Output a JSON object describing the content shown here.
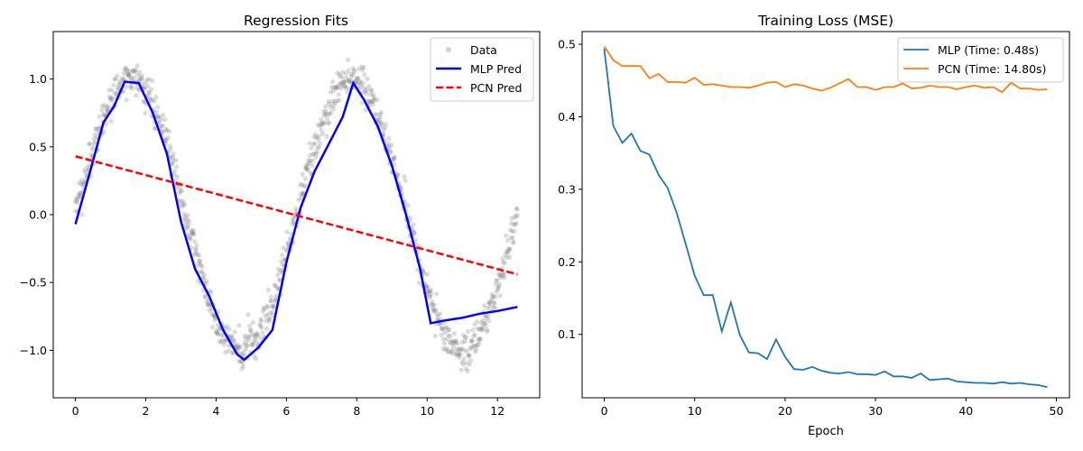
{
  "chart_data": [
    {
      "type": "scatter",
      "title": "Regression Fits",
      "xlabel": "",
      "ylabel": "",
      "xlim": [
        -0.63,
        13.2
      ],
      "ylim": [
        -1.35,
        1.35
      ],
      "xticks": [
        0,
        2,
        4,
        6,
        8,
        10,
        12
      ],
      "yticks": [
        -1.0,
        -0.5,
        0.0,
        0.5,
        1.0
      ],
      "ytick_labels": [
        "−1.0",
        "−0.5",
        "0.0",
        "0.5",
        "1.0"
      ],
      "legend_position": "upper right",
      "colors": {
        "data": "#808080",
        "mlp": "#0000ff",
        "pcn": "#ff0000"
      },
      "scatter": {
        "name": "Data",
        "function": "sin(x) with noise",
        "x_range": [
          0,
          12.57
        ],
        "noise_std": 0.07
      },
      "series": [
        {
          "name": "MLP Pred",
          "style": "solid",
          "x": [
            0,
            0.4,
            0.8,
            1.1,
            1.4,
            1.8,
            2.2,
            2.6,
            3.0,
            3.4,
            3.8,
            4.2,
            4.6,
            4.8,
            5.2,
            5.6,
            6.0,
            6.4,
            6.8,
            7.2,
            7.6,
            7.9,
            8.2,
            8.6,
            9.0,
            9.4,
            9.8,
            10.1,
            10.5,
            11.0,
            11.5,
            12.0,
            12.57
          ],
          "y": [
            -0.07,
            0.3,
            0.68,
            0.8,
            0.98,
            0.97,
            0.75,
            0.45,
            -0.05,
            -0.4,
            -0.6,
            -0.85,
            -1.03,
            -1.07,
            -0.98,
            -0.85,
            -0.35,
            0.05,
            0.32,
            0.52,
            0.72,
            0.97,
            0.85,
            0.65,
            0.36,
            0.0,
            -0.4,
            -0.8,
            -0.78,
            -0.76,
            -0.73,
            -0.71,
            -0.68
          ]
        },
        {
          "name": "PCN Pred",
          "style": "dashed",
          "x": [
            0,
            12.57
          ],
          "y": [
            0.43,
            -0.44
          ]
        }
      ]
    },
    {
      "type": "line",
      "title": "Training Loss (MSE)",
      "xlabel": "Epoch",
      "ylabel": "",
      "xlim": [
        -2.45,
        51.45
      ],
      "ylim": [
        0.0125,
        0.5175
      ],
      "xticks": [
        0,
        10,
        20,
        30,
        40,
        50
      ],
      "yticks": [
        0.1,
        0.2,
        0.3,
        0.4,
        0.5
      ],
      "legend_position": "upper right",
      "series": [
        {
          "name": "MLP (Time: 0.48s)",
          "color": "#1f77b4",
          "x": [
            0,
            1,
            2,
            3,
            4,
            5,
            6,
            7,
            8,
            9,
            10,
            11,
            12,
            13,
            14,
            15,
            16,
            17,
            18,
            19,
            20,
            21,
            22,
            23,
            24,
            25,
            26,
            27,
            28,
            29,
            30,
            31,
            32,
            33,
            34,
            35,
            36,
            37,
            38,
            39,
            40,
            41,
            42,
            43,
            44,
            45,
            46,
            47,
            48,
            49
          ],
          "y": [
            0.494,
            0.387,
            0.364,
            0.377,
            0.353,
            0.348,
            0.32,
            0.302,
            0.268,
            0.225,
            0.181,
            0.154,
            0.154,
            0.104,
            0.144,
            0.099,
            0.075,
            0.074,
            0.066,
            0.093,
            0.069,
            0.052,
            0.051,
            0.055,
            0.05,
            0.047,
            0.046,
            0.048,
            0.045,
            0.045,
            0.044,
            0.049,
            0.042,
            0.042,
            0.04,
            0.046,
            0.037,
            0.038,
            0.039,
            0.035,
            0.034,
            0.033,
            0.033,
            0.032,
            0.034,
            0.032,
            0.033,
            0.031,
            0.03,
            0.027
          ]
        },
        {
          "name": "PCN (Time: 14.80s)",
          "color": "#ff7f0e",
          "x": [
            0,
            1,
            2,
            3,
            4,
            5,
            6,
            7,
            8,
            9,
            10,
            11,
            12,
            13,
            14,
            15,
            16,
            17,
            18,
            19,
            20,
            21,
            22,
            23,
            24,
            25,
            26,
            27,
            28,
            29,
            30,
            31,
            32,
            33,
            34,
            35,
            36,
            37,
            38,
            39,
            40,
            41,
            42,
            43,
            44,
            45,
            46,
            47,
            48,
            49
          ],
          "y": [
            0.497,
            0.478,
            0.47,
            0.47,
            0.47,
            0.453,
            0.459,
            0.448,
            0.448,
            0.447,
            0.454,
            0.444,
            0.445,
            0.443,
            0.441,
            0.441,
            0.44,
            0.443,
            0.447,
            0.448,
            0.441,
            0.445,
            0.443,
            0.439,
            0.436,
            0.44,
            0.446,
            0.452,
            0.441,
            0.441,
            0.437,
            0.441,
            0.441,
            0.446,
            0.439,
            0.44,
            0.443,
            0.441,
            0.441,
            0.438,
            0.441,
            0.443,
            0.44,
            0.441,
            0.434,
            0.447,
            0.439,
            0.439,
            0.437,
            0.438
          ]
        }
      ]
    }
  ]
}
